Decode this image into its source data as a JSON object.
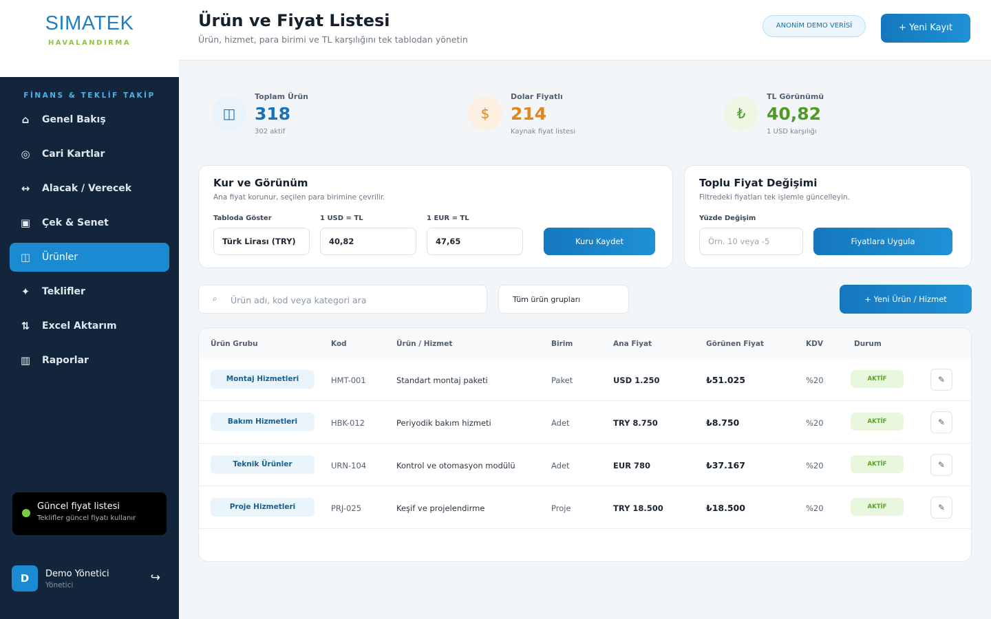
{
  "brand": {
    "name": "SIMATEK",
    "tagline": "HAVALANDIRMA"
  },
  "sidebar": {
    "section_title": "FİNANS & TEKLİF TAKİP",
    "items": [
      {
        "label": "Genel Bakış",
        "icon": "home-icon",
        "glyph": "⌂"
      },
      {
        "label": "Cari Kartlar",
        "icon": "target-icon",
        "glyph": "◎"
      },
      {
        "label": "Alacak / Verecek",
        "icon": "arrows-horizontal-icon",
        "glyph": "↔"
      },
      {
        "label": "Çek & Senet",
        "icon": "document-icon",
        "glyph": "▣"
      },
      {
        "label": "Ürünler",
        "icon": "product-icon",
        "glyph": "◫"
      },
      {
        "label": "Teklifler",
        "icon": "sparkle-icon",
        "glyph": "✦"
      },
      {
        "label": "Excel Aktarım",
        "icon": "transfer-icon",
        "glyph": "⇅"
      },
      {
        "label": "Raporlar",
        "icon": "report-icon",
        "glyph": "▥"
      }
    ],
    "active_index": 4,
    "status": {
      "title": "Güncel fiyat listesi",
      "subtitle": "Teklifler güncel fiyatı kullanır",
      "dot_color": "#7ac943"
    },
    "user": {
      "initial": "D",
      "name": "Demo Yönetici",
      "role": "Yönetici",
      "logout_glyph": "↪"
    }
  },
  "header": {
    "title": "Ürün ve Fiyat Listesi",
    "subtitle": "Ürün, hizmet, para birimi ve TL karşılığını tek tablodan yönetin",
    "demo_badge": "ANONİM DEMO VERİSİ",
    "new_button": "+ Yeni Kayıt"
  },
  "stats": [
    {
      "label": "Toplam Ürün",
      "value": "318",
      "sub": "302 aktif",
      "glyph": "◫",
      "icon": "product-icon",
      "color": "#1a73b8",
      "bg": "#e9f3fb"
    },
    {
      "label": "Dolar Fiyatlı",
      "value": "214",
      "sub": "Kaynak fiyat listesi",
      "glyph": "$",
      "icon": "dollar-icon",
      "color": "#e08620",
      "bg": "#fdf0e2"
    },
    {
      "label": "TL Görünümü",
      "value": "40,82",
      "sub": "1 USD karşılığı",
      "glyph": "₺",
      "icon": "lira-icon",
      "color": "#4f9a25",
      "bg": "#edf7e4"
    }
  ],
  "rates_card": {
    "title": "Kur ve Görünüm",
    "subtitle": "Ana fiyat korunur, seçilen para birimine çevrilir.",
    "display_label": "Tabloda Göster",
    "display_value": "Türk Lirası (TRY)",
    "usd_label": "1 USD = TL",
    "usd_value": "40,82",
    "eur_label": "1 EUR = TL",
    "eur_value": "47,65",
    "save_button": "Kuru Kaydet"
  },
  "bulk_card": {
    "title": "Toplu Fiyat Değişimi",
    "subtitle": "Filtredeki fiyatları tek işlemle güncelleyin.",
    "percent_label": "Yüzde Değişim",
    "percent_placeholder": "Örn. 10 veya -5",
    "apply_button": "Fiyatlara Uygula"
  },
  "filters": {
    "search_placeholder": "Ürün adı, kod veya kategori ara",
    "group_select": "Tüm ürün grupları",
    "add_button": "+ Yeni Ürün / Hizmet"
  },
  "table": {
    "columns": [
      "Ürün Grubu",
      "Kod",
      "Ürün / Hizmet",
      "Birim",
      "Ana Fiyat",
      "Görünen Fiyat",
      "KDV",
      "Durum"
    ],
    "rows": [
      {
        "group": "Montaj Hizmetleri",
        "code": "HMT-001",
        "name": "Standart montaj paketi",
        "unit": "Paket",
        "base_price": "USD 1.250",
        "shown_price": "₺51.025",
        "vat": "%20",
        "status": "AKTİF"
      },
      {
        "group": "Bakım Hizmetleri",
        "code": "HBK-012",
        "name": "Periyodik bakım hizmeti",
        "unit": "Adet",
        "base_price": "TRY 8.750",
        "shown_price": "₺8.750",
        "vat": "%20",
        "status": "AKTİF"
      },
      {
        "group": "Teknik Ürünler",
        "code": "URN-104",
        "name": "Kontrol ve otomasyon modülü",
        "unit": "Adet",
        "base_price": "EUR 780",
        "shown_price": "₺37.167",
        "vat": "%20",
        "status": "AKTİF"
      },
      {
        "group": "Proje Hizmetleri",
        "code": "PRJ-025",
        "name": "Keşif ve projelendirme",
        "unit": "Proje",
        "base_price": "TRY 18.500",
        "shown_price": "₺18.500",
        "vat": "%20",
        "status": "AKTİF"
      }
    ],
    "edit_glyph": "✎"
  }
}
